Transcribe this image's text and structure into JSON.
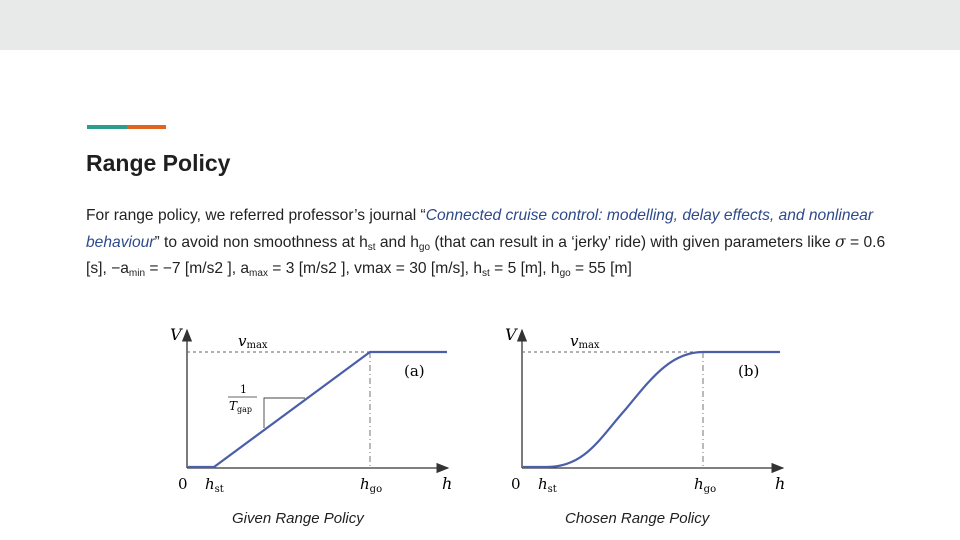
{
  "slide": {
    "title": "Range Policy",
    "body": {
      "intro": "For range policy, we referred professor’s journal “",
      "journal_title": "Connected cruise control: modelling, delay effects, and nonlinear behaviour",
      "after_journal": "” to avoid non smoothness at h",
      "sub_st": "st",
      "and": " and h",
      "sub_go": "go",
      "rest1": " (that can result in a ‘jerky’ ride) with given parameters like ",
      "sigma": "σ",
      "sigma_val": " = 0.6 [s], −a",
      "sub_min": "min",
      "amin_val": " = −7 [m/s2 ], a",
      "sub_max": "max",
      "amax_val": " = 3 [m/s2 ], vmax = 30 [m/s], h",
      "hst_val": " = 5 [m], h",
      "hgo_val": " = 55 [m]"
    }
  },
  "figures": [
    {
      "axis_y": "V",
      "axis_x": "h",
      "origin": "0",
      "vmax": "v",
      "vmax_sub": "max",
      "hst": "h",
      "hst_sub": "st",
      "hgo": "h",
      "hgo_sub": "go",
      "tag": "(a)",
      "slope_num": "1",
      "slope_den": "T",
      "slope_den_sub": "gap",
      "caption": "Given Range Policy",
      "curve": "linear"
    },
    {
      "axis_y": "V",
      "axis_x": "h",
      "origin": "0",
      "vmax": "v",
      "vmax_sub": "max",
      "hst": "h",
      "hst_sub": "st",
      "hgo": "h",
      "hgo_sub": "go",
      "tag": "(b)",
      "caption": "Chosen Range Policy",
      "curve": "smooth"
    }
  ],
  "colors": {
    "accent_teal": "#2a9d8f",
    "accent_orange": "#e0661e",
    "curve": "#4a5fa8",
    "journal_text": "#2e4a8a"
  }
}
